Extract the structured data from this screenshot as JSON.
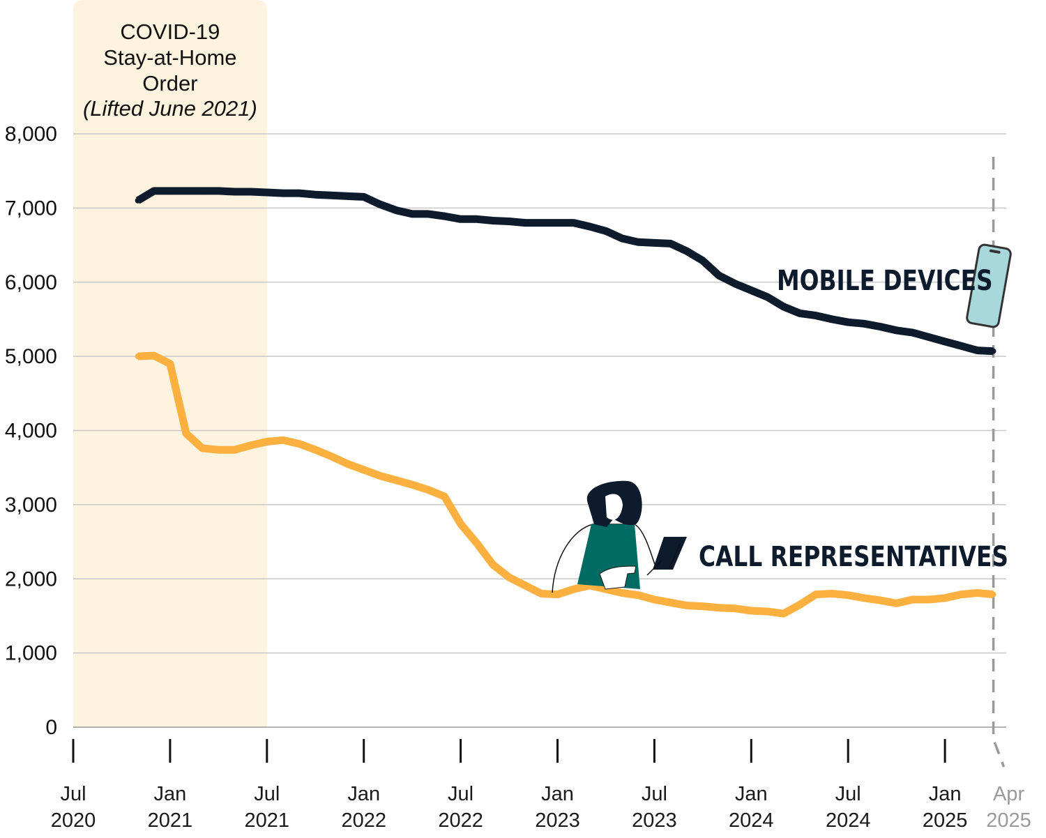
{
  "chart_data": {
    "type": "line",
    "title": "",
    "xlabel": "",
    "ylabel": "",
    "ylim": [
      0,
      8000
    ],
    "yticks": [
      "0",
      "1,000",
      "2,000",
      "3,000",
      "4,000",
      "5,000",
      "6,000",
      "7,000",
      "8,000"
    ],
    "grid": "horizontal",
    "xticks": [
      {
        "date": "2020-07",
        "month": "Jul",
        "year": "2020"
      },
      {
        "date": "2021-01",
        "month": "Jan",
        "year": "2021"
      },
      {
        "date": "2021-07",
        "month": "Jul",
        "year": "2021"
      },
      {
        "date": "2022-01",
        "month": "Jan",
        "year": "2022"
      },
      {
        "date": "2022-07",
        "month": "Jul",
        "year": "2022"
      },
      {
        "date": "2023-01",
        "month": "Jan",
        "year": "2023"
      },
      {
        "date": "2023-07",
        "month": "Jul",
        "year": "2023"
      },
      {
        "date": "2024-01",
        "month": "Jan",
        "year": "2024"
      },
      {
        "date": "2024-07",
        "month": "Jul",
        "year": "2024"
      },
      {
        "date": "2025-01",
        "month": "Jan",
        "year": "2025"
      }
    ],
    "marker": {
      "date": "2025-04",
      "month": "Apr",
      "year": "2025",
      "color": "#9a9a9a",
      "style": "dashed"
    },
    "shaded_region": {
      "start": "2020-07",
      "end": "2021-07",
      "color": "#fdf3de",
      "label_lines": [
        "COVID-19",
        "Stay-at-Home",
        "Order"
      ],
      "note": "(Lifted June 2021)"
    },
    "x": [
      "2020-11",
      "2020-12",
      "2021-01",
      "2021-02",
      "2021-03",
      "2021-04",
      "2021-05",
      "2021-06",
      "2021-07",
      "2021-08",
      "2021-09",
      "2021-10",
      "2021-11",
      "2021-12",
      "2022-01",
      "2022-02",
      "2022-03",
      "2022-04",
      "2022-05",
      "2022-06",
      "2022-07",
      "2022-08",
      "2022-09",
      "2022-10",
      "2022-11",
      "2022-12",
      "2023-01",
      "2023-02",
      "2023-03",
      "2023-04",
      "2023-05",
      "2023-06",
      "2023-07",
      "2023-08",
      "2023-09",
      "2023-10",
      "2023-11",
      "2023-12",
      "2024-01",
      "2024-02",
      "2024-03",
      "2024-04",
      "2024-05",
      "2024-06",
      "2024-07",
      "2024-08",
      "2024-09",
      "2024-10",
      "2024-11",
      "2024-12",
      "2025-01",
      "2025-02",
      "2025-03",
      "2025-04"
    ],
    "series": [
      {
        "name": "MOBILE DEVICES",
        "color": "#0e1b2c",
        "values": [
          7100,
          7230,
          7230,
          7230,
          7230,
          7230,
          7220,
          7220,
          7210,
          7200,
          7200,
          7180,
          7170,
          7160,
          7150,
          7050,
          6970,
          6920,
          6920,
          6890,
          6850,
          6850,
          6830,
          6820,
          6800,
          6800,
          6800,
          6800,
          6750,
          6690,
          6590,
          6540,
          6530,
          6520,
          6420,
          6290,
          6090,
          5980,
          5890,
          5800,
          5670,
          5580,
          5550,
          5500,
          5460,
          5440,
          5400,
          5350,
          5320,
          5260,
          5200,
          5140,
          5080,
          5070
        ]
      },
      {
        "name": "CALL REPRESENTATIVES",
        "color": "#fbb040",
        "values": [
          5000,
          5010,
          4900,
          3960,
          3760,
          3740,
          3740,
          3800,
          3850,
          3870,
          3820,
          3740,
          3650,
          3550,
          3470,
          3390,
          3330,
          3270,
          3200,
          3110,
          2740,
          2480,
          2190,
          2020,
          1910,
          1800,
          1790,
          1860,
          1910,
          1860,
          1810,
          1780,
          1720,
          1680,
          1640,
          1630,
          1610,
          1600,
          1570,
          1560,
          1530,
          1650,
          1790,
          1800,
          1780,
          1740,
          1710,
          1670,
          1720,
          1720,
          1740,
          1790,
          1810,
          1790
        ]
      }
    ],
    "illustrations": {
      "phone": "smartphone-icon",
      "person": "woman-with-tablet-illustration",
      "accent": "#006b63",
      "phone_screen": "#a9d8dc"
    }
  }
}
